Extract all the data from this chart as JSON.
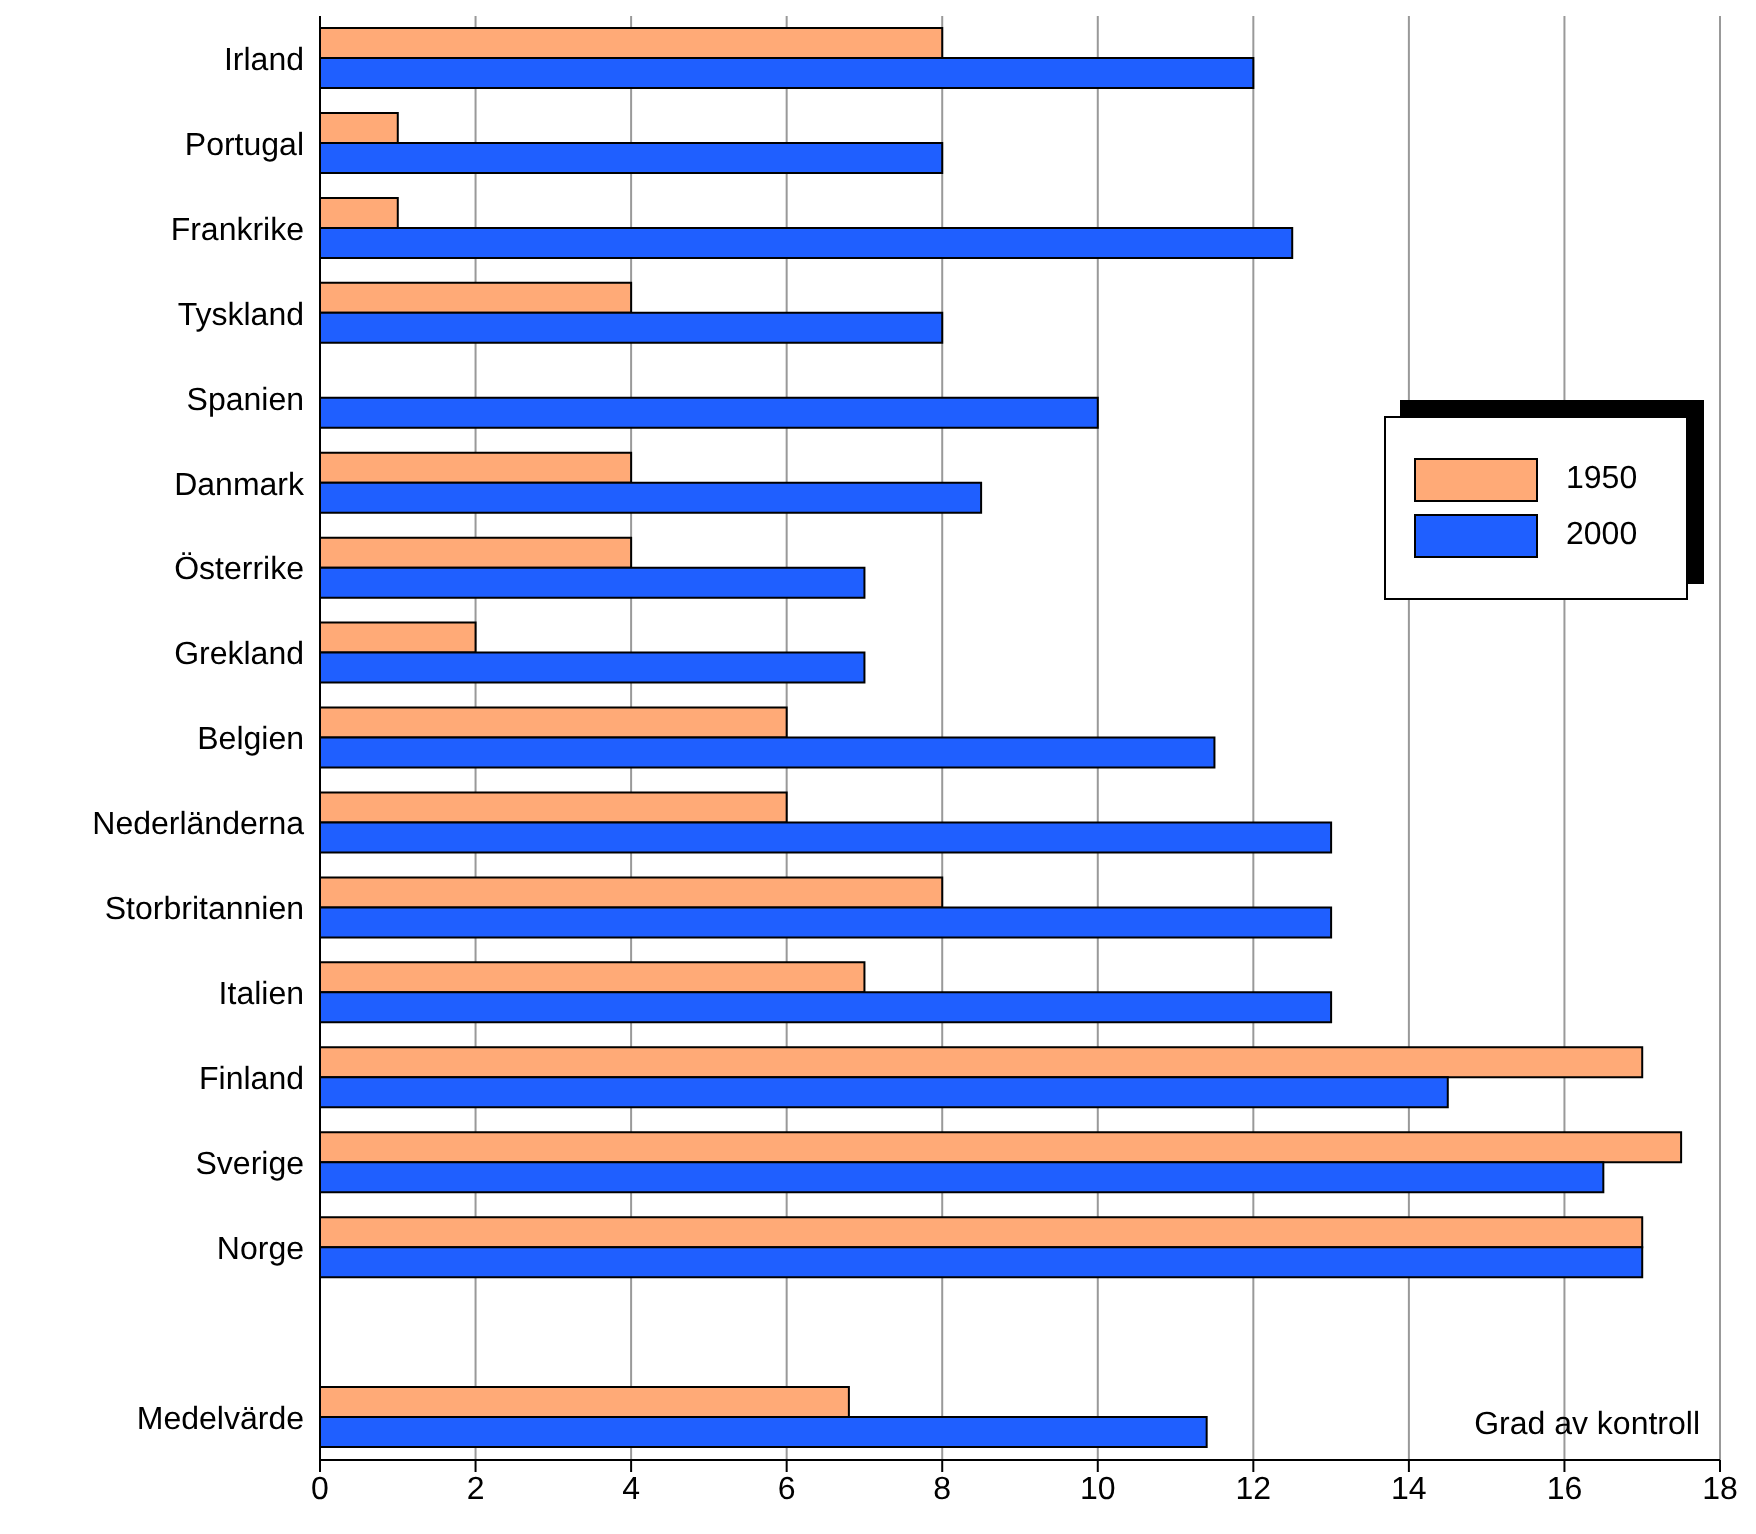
{
  "chart_data": {
    "type": "bar",
    "orientation": "horizontal",
    "xlabel": "Grad av kontroll",
    "categories": [
      "Irland",
      "Portugal",
      "Frankrike",
      "Tyskland",
      "Spanien",
      "Danmark",
      "Österrike",
      "Grekland",
      "Belgien",
      "Nederländerna",
      "Storbritannien",
      "Italien",
      "Finland",
      "Sverige",
      "Norge",
      null,
      "Medelvärde"
    ],
    "series": [
      {
        "name": "1950",
        "color": "#ffaa77",
        "values": [
          8,
          1,
          1,
          4,
          null,
          4,
          4,
          2,
          6,
          6,
          8,
          7,
          17,
          17.5,
          17,
          null,
          6.8
        ]
      },
      {
        "name": "2000",
        "color": "#1f5fff",
        "values": [
          12,
          8,
          12.5,
          8,
          10,
          8.5,
          7,
          7,
          11.5,
          13,
          13,
          13,
          14.5,
          16.5,
          17,
          null,
          11.4
        ]
      }
    ],
    "xlim": [
      0,
      18
    ],
    "xticks": [
      0,
      2,
      4,
      6,
      8,
      10,
      12,
      14,
      16,
      18
    ],
    "grid": "x",
    "legend": "right"
  }
}
